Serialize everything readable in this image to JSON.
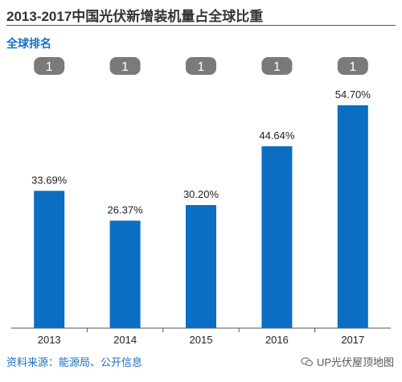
{
  "title": "2013-2017中国光伏新增装机量占全球比重",
  "rank_title": "全球排名",
  "source": "资料来源：能源局、公开信息",
  "watermark": "UP光伏屋顶地图",
  "colors": {
    "bar": "#0b6ec3",
    "badge": "#7a7a7a",
    "badge_text": "#ffffff",
    "axis": "#555555",
    "accent": "#1a6fc0"
  },
  "chart_data": {
    "type": "bar",
    "title": "2013-2017中国光伏新增装机量占全球比重",
    "categories": [
      "2013",
      "2014",
      "2015",
      "2016",
      "2017"
    ],
    "values": [
      33.69,
      26.37,
      30.2,
      44.64,
      54.7
    ],
    "value_labels": [
      "33.69%",
      "26.37%",
      "30.20%",
      "44.64%",
      "54.70%"
    ],
    "ranks": [
      "1",
      "1",
      "1",
      "1",
      "1"
    ],
    "ylim": [
      0,
      60
    ],
    "grid": false
  }
}
